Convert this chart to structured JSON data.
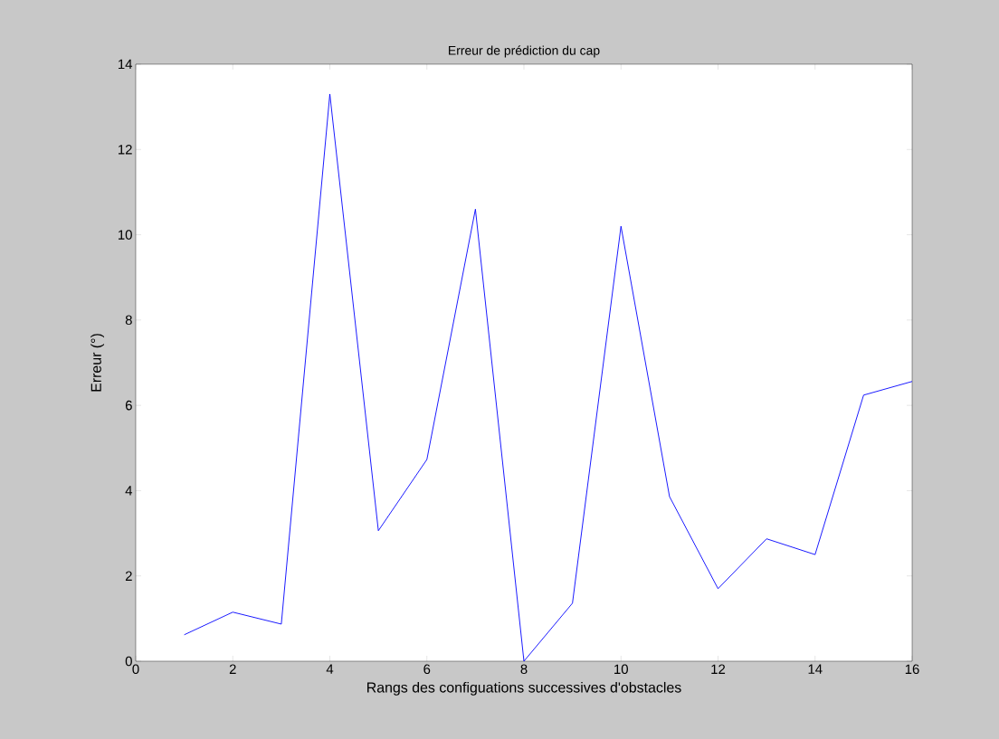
{
  "chart_data": {
    "type": "line",
    "title": "Erreur de prédiction du cap",
    "xlabel": "Rangs des configuations successives d'obstacles",
    "ylabel": "Erreur (°)",
    "x": [
      1,
      2,
      3,
      4,
      5,
      6,
      7,
      8,
      9,
      10,
      11,
      12,
      13,
      14,
      15,
      16
    ],
    "series": [
      {
        "color": "#0000ff",
        "values": [
          0.62,
          1.15,
          0.87,
          13.3,
          3.06,
          4.73,
          10.6,
          0.0,
          1.36,
          10.2,
          3.86,
          1.7,
          2.87,
          2.5,
          6.24,
          6.56
        ]
      }
    ],
    "xlim": [
      0,
      16
    ],
    "xticks": [
      0,
      2,
      4,
      6,
      8,
      10,
      12,
      14,
      16
    ],
    "ylim": [
      0,
      14
    ],
    "yticks": [
      0,
      2,
      4,
      6,
      8,
      10,
      12,
      14
    ],
    "grid": false,
    "marker": "none",
    "line_style": "solid"
  }
}
